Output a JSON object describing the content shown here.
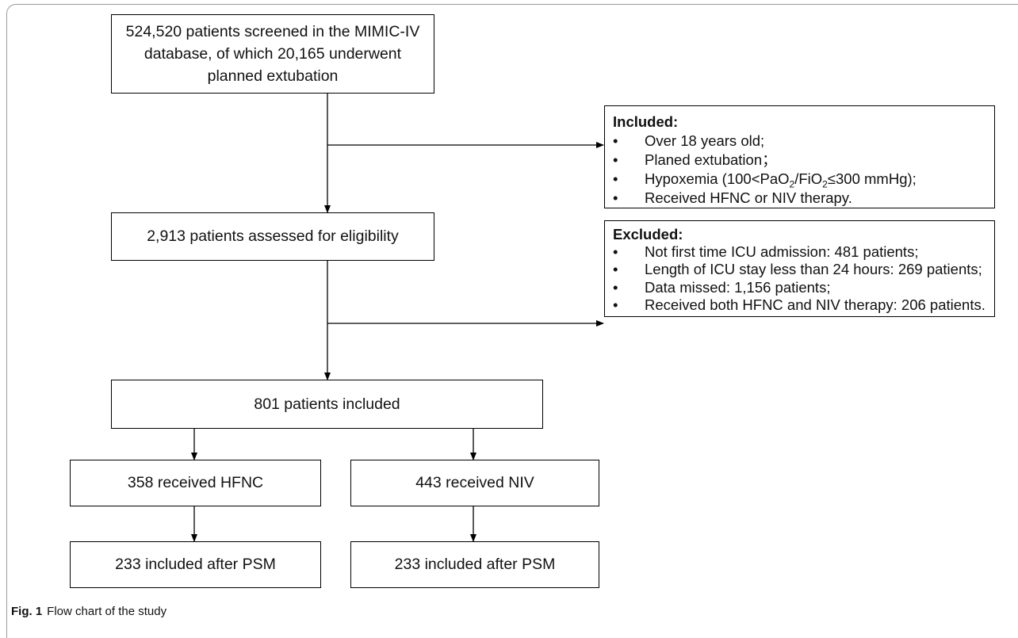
{
  "nodes": [
    {
      "label": "524,520 patients screened in the MIMIC-IV database, of which 20,165 underwent planned extubation"
    },
    {
      "label": "2,913 patients assessed for eligibility"
    },
    {
      "label": "801 patients included"
    },
    {
      "label": "358 received HFNC"
    },
    {
      "label": "443 received NIV"
    },
    {
      "label": "233 included after PSM"
    },
    {
      "label": "233 included after PSM"
    }
  ],
  "included": {
    "title": "Included:",
    "items": [
      "Over 18 years old;",
      "Planed extubation；",
      [
        "Hypoxemia (100<PaO",
        "2",
        "/FiO",
        "2",
        "≤300 mmHg);"
      ],
      "Received HFNC or NIV therapy."
    ]
  },
  "excluded": {
    "title": "Excluded:",
    "items": [
      "Not first time ICU admission: 481 patients;",
      "Length of ICU stay less than 24 hours: 269 patients;",
      "Data missed: 1,156 patients;",
      "Received both HFNC and NIV therapy: 206 patients."
    ]
  },
  "caption": {
    "label": "Fig. 1",
    "text": "Flow chart of the study"
  }
}
